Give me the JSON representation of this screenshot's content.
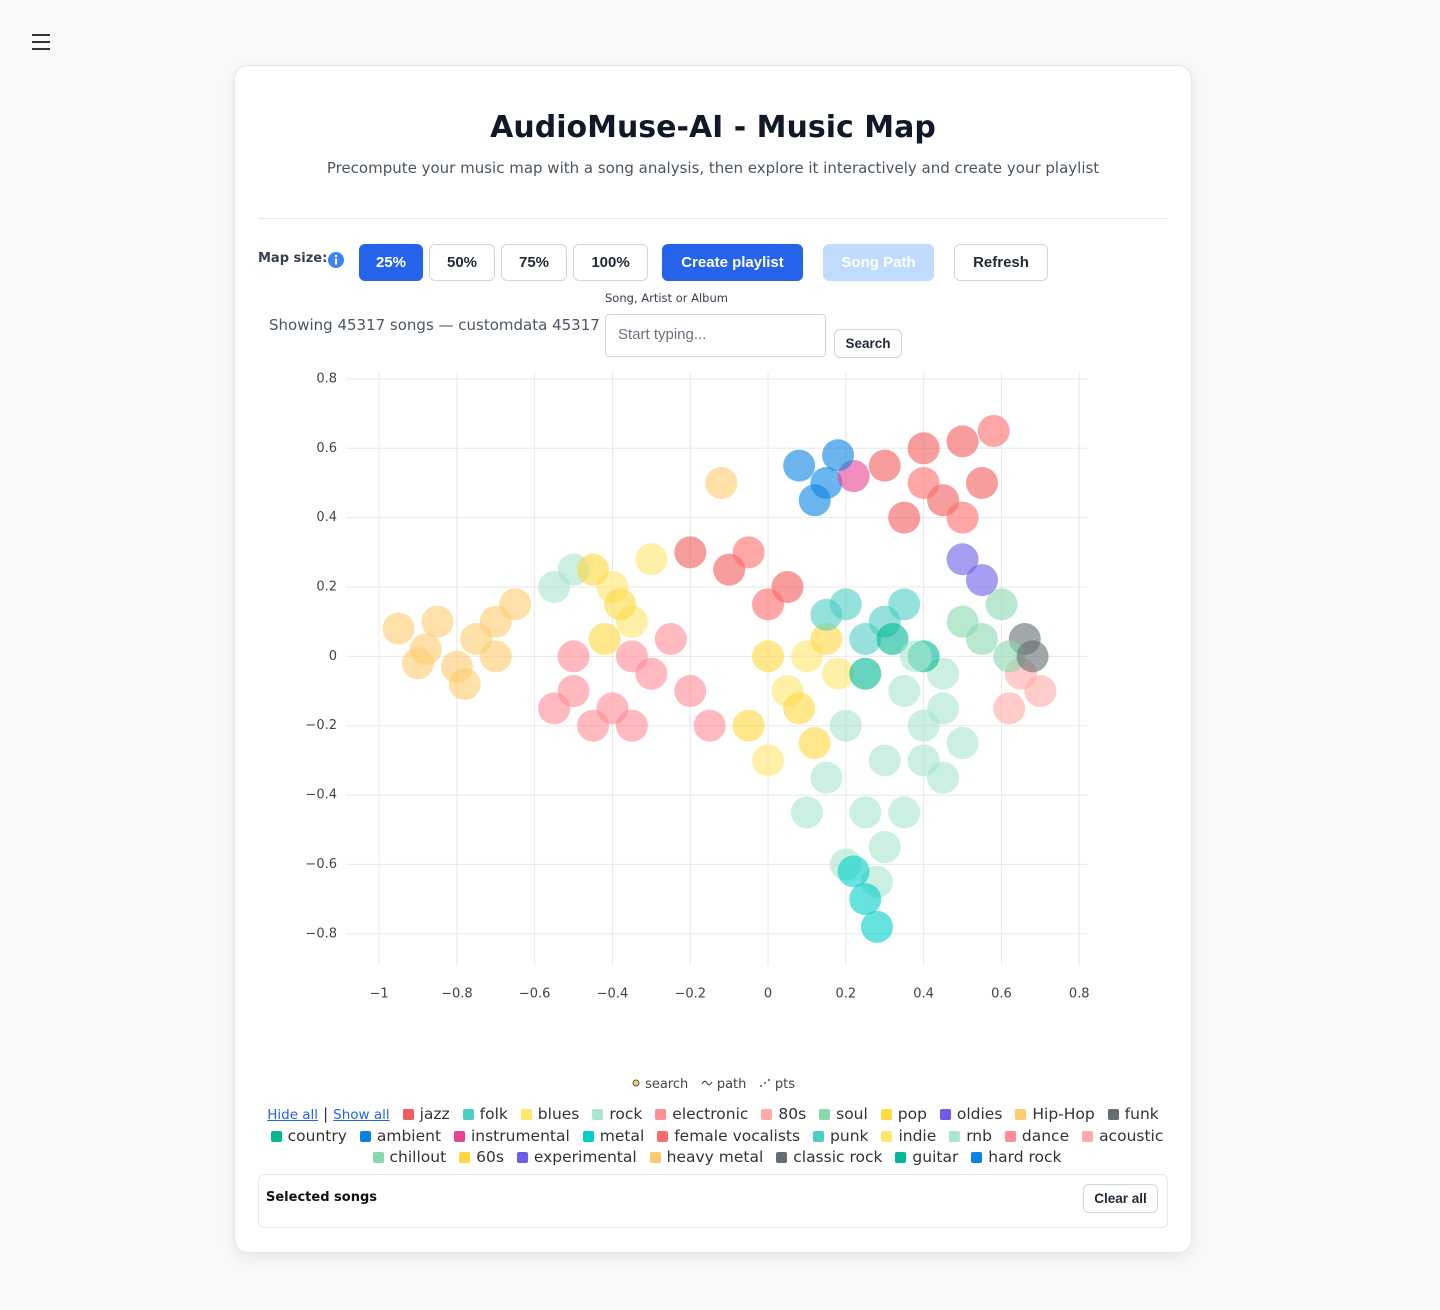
{
  "header": {
    "title": "AudioMuse-AI - Music Map",
    "subtitle": "Precompute your music map with a song analysis, then explore it interactively and create your playlist"
  },
  "controls": {
    "map_size_label": "Map size:",
    "sizes": [
      "25%",
      "50%",
      "75%",
      "100%"
    ],
    "create": "Create playlist",
    "song_path": "Song Path",
    "refresh": "Refresh"
  },
  "search": {
    "label": "Song, Artist or Album",
    "status": "Showing 45317 songs — customdata 45317",
    "placeholder": "Start typing...",
    "button": "Search"
  },
  "trace_legend": [
    "search",
    "path",
    "pts"
  ],
  "legend_controls": {
    "hide": "Hide all",
    "separator": "|",
    "show": "Show all"
  },
  "selected": {
    "title": "Selected songs",
    "button": "Clear all"
  },
  "chart_data": {
    "type": "scatter",
    "xlim": [
      -1.085,
      0.82
    ],
    "ylim": [
      -0.89,
      0.82
    ],
    "grid": true,
    "xticks": [
      {
        "value": -1,
        "label": "−1"
      },
      {
        "value": -0.8,
        "label": "−0.8"
      },
      {
        "value": -0.6,
        "label": "−0.6"
      },
      {
        "value": -0.4,
        "label": "−0.4"
      },
      {
        "value": -0.2,
        "label": "−0.2"
      },
      0,
      0.2,
      0.4,
      0.6,
      0.8
    ],
    "yticks": [
      {
        "value": -0.8,
        "label": "−0.8"
      },
      {
        "value": -0.6,
        "label": "−0.6"
      },
      {
        "value": -0.4,
        "label": "−0.4"
      },
      {
        "value": -0.2,
        "label": "−0.2"
      },
      0,
      0.2,
      0.4,
      0.6,
      0.8
    ],
    "series": [
      {
        "name": "jazz",
        "color": "#f25c5c",
        "x": [
          0.3,
          0.4,
          0.5,
          0.55,
          0.45,
          0.35,
          -0.2,
          -0.1,
          0.05
        ],
        "y": [
          0.55,
          0.6,
          0.62,
          0.5,
          0.45,
          0.4,
          0.3,
          0.25,
          0.2
        ]
      },
      {
        "name": "folk",
        "color": "#4ecdc4",
        "x": [
          0.2,
          0.3,
          0.25
        ],
        "y": [
          0.15,
          0.1,
          0.05
        ]
      },
      {
        "name": "blues",
        "color": "#ffe66d",
        "x": [
          -0.4,
          -0.35,
          0.05,
          0.1
        ],
        "y": [
          0.2,
          0.1,
          -0.1,
          0.0
        ]
      },
      {
        "name": "rock",
        "color": "#a8e6cf",
        "x": [
          0.2,
          0.3,
          0.35,
          0.25,
          0.15,
          0.3,
          0.4,
          0.45,
          0.2,
          0.28,
          0.35,
          -0.55,
          -0.5,
          0.1,
          0.45
        ],
        "y": [
          -0.2,
          -0.3,
          -0.1,
          -0.45,
          -0.35,
          -0.55,
          -0.3,
          -0.15,
          -0.6,
          -0.65,
          -0.45,
          0.2,
          0.25,
          -0.45,
          -0.05
        ]
      },
      {
        "name": "electronic",
        "color": "#ff8b94",
        "x": [
          -0.5,
          -0.4,
          -0.3,
          -0.45,
          -0.35,
          -0.2,
          -0.15,
          -0.5
        ],
        "y": [
          -0.1,
          -0.15,
          -0.05,
          -0.2,
          0.0,
          -0.1,
          -0.2,
          0.0
        ]
      },
      {
        "name": "80s",
        "color": "#ffaaa5",
        "x": [
          0.65,
          0.7
        ],
        "y": [
          -0.05,
          -0.1
        ]
      },
      {
        "name": "soul",
        "color": "#88d8b0",
        "x": [
          0.6,
          0.55
        ],
        "y": [
          0.15,
          0.05
        ]
      },
      {
        "name": "pop",
        "color": "#ffd93d",
        "x": [
          -0.45,
          -0.38,
          0.0,
          0.08,
          -0.05,
          0.15
        ],
        "y": [
          0.25,
          0.15,
          0.0,
          -0.15,
          -0.2,
          0.05
        ]
      },
      {
        "name": "oldies",
        "color": "#6c5ce7",
        "x": [
          0.5
        ],
        "y": [
          0.28
        ]
      },
      {
        "name": "Hip-Hop",
        "color": "#fdcb6e",
        "x": [
          -0.95,
          -0.88,
          -0.8,
          -0.85,
          -0.75,
          -0.9,
          -0.7,
          -0.78,
          -0.65
        ],
        "y": [
          0.08,
          0.02,
          -0.03,
          0.1,
          0.05,
          -0.02,
          0.1,
          -0.08,
          0.15
        ]
      },
      {
        "name": "funk",
        "color": "#636e72",
        "x": [
          0.66
        ],
        "y": [
          0.05
        ]
      },
      {
        "name": "country",
        "color": "#00b894",
        "x": [
          0.32,
          0.4
        ],
        "y": [
          0.05,
          0.0
        ]
      },
      {
        "name": "ambient",
        "color": "#0984e3",
        "x": [
          0.08,
          0.15
        ],
        "y": [
          0.55,
          0.5
        ]
      },
      {
        "name": "instrumental",
        "color": "#e84393",
        "x": [
          0.22
        ],
        "y": [
          0.52
        ]
      },
      {
        "name": "metal",
        "color": "#00cec9",
        "x": [
          0.25,
          0.28,
          0.22
        ],
        "y": [
          -0.7,
          -0.78,
          -0.62
        ]
      },
      {
        "name": "female vocalists",
        "color": "#ff6b6b",
        "x": [
          0.5,
          0.58,
          0.4,
          -0.05,
          0.0
        ],
        "y": [
          0.4,
          0.65,
          0.5,
          0.3,
          0.15
        ]
      },
      {
        "name": "punk",
        "color": "#4ecdc4",
        "x": [
          0.15,
          0.35
        ],
        "y": [
          0.12,
          0.15
        ]
      },
      {
        "name": "indie",
        "color": "#ffe66d",
        "x": [
          0.0,
          0.18,
          -0.3
        ],
        "y": [
          -0.3,
          -0.05,
          0.28
        ]
      },
      {
        "name": "rnb",
        "color": "#a8e6cf",
        "x": [
          0.4,
          0.45,
          0.38,
          0.5
        ],
        "y": [
          -0.2,
          -0.35,
          0.0,
          -0.25
        ]
      },
      {
        "name": "dance",
        "color": "#ff8b94",
        "x": [
          -0.35,
          -0.25,
          -0.55
        ],
        "y": [
          -0.2,
          0.05,
          -0.15
        ]
      },
      {
        "name": "acoustic",
        "color": "#ffaaa5",
        "x": [
          0.62
        ],
        "y": [
          -0.15
        ]
      },
      {
        "name": "chillout",
        "color": "#88d8b0",
        "x": [
          0.62,
          0.5
        ],
        "y": [
          0.0,
          0.1
        ]
      },
      {
        "name": "60s",
        "color": "#ffd93d",
        "x": [
          0.12,
          -0.42
        ],
        "y": [
          -0.25,
          0.05
        ]
      },
      {
        "name": "experimental",
        "color": "#6c5ce7",
        "x": [
          0.55
        ],
        "y": [
          0.22
        ]
      },
      {
        "name": "heavy metal",
        "color": "#fdcb6e",
        "x": [
          -0.7,
          -0.12
        ],
        "y": [
          0.0,
          0.5
        ]
      },
      {
        "name": "classic rock",
        "color": "#636e72",
        "x": [
          0.68
        ],
        "y": [
          0.0
        ]
      },
      {
        "name": "guitar",
        "color": "#00b894",
        "x": [
          0.25
        ],
        "y": [
          -0.05
        ]
      },
      {
        "name": "hard rock",
        "color": "#0984e3",
        "x": [
          0.12,
          0.18
        ],
        "y": [
          0.45,
          0.58
        ]
      }
    ]
  }
}
